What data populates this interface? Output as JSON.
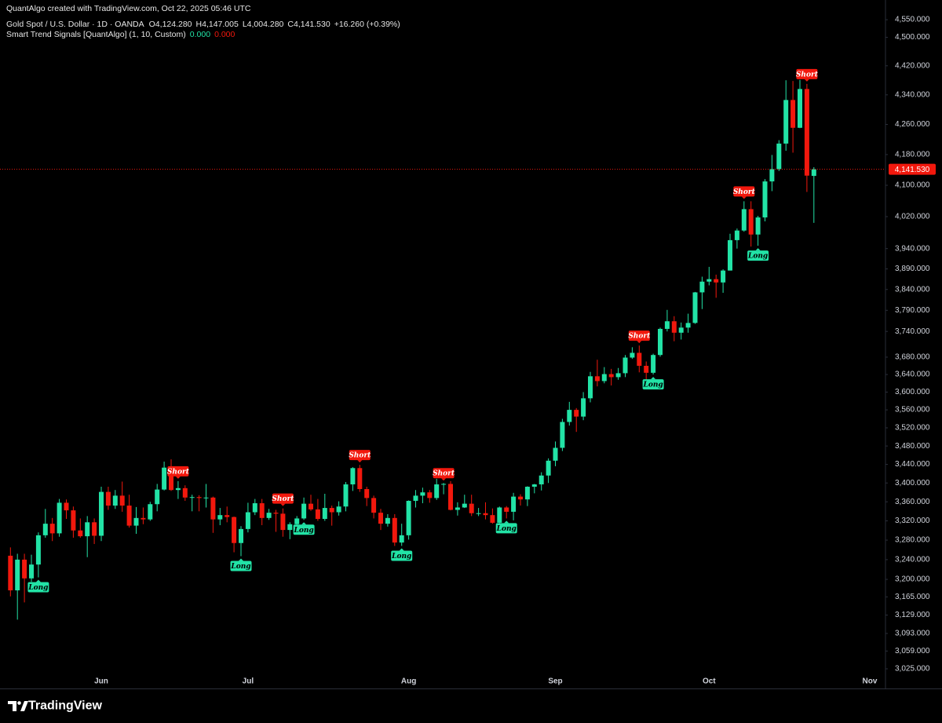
{
  "chart_data": {
    "type": "candlestick",
    "credit": "QuantAlgo created with TradingView.com, Oct 22, 2025 05:46 UTC",
    "symbol": "Gold Spot / U.S. Dollar · 1D · OANDA",
    "ohlc_legend": [
      "O4,124.280",
      "H4,147.005",
      "L4,004.280",
      "C4,141.530",
      "+16.260 (+0.39%)"
    ],
    "indicator": "Smart Trend Signals [QuantAlgo] (1, 10, Custom)",
    "indicator_values": [
      "0.000",
      "0.000"
    ],
    "indicator_colors": [
      "#22e3a6",
      "#f2180d"
    ],
    "brand": "TradingView",
    "log_scale": true,
    "up_color": "#22e3a6",
    "down_color": "#f2180d",
    "ylim": [
      3016,
      4575
    ],
    "yticks": [
      {
        "value": 4550,
        "label": "4,550.000"
      },
      {
        "value": 4500,
        "label": "4,500.000"
      },
      {
        "value": 4420,
        "label": "4,420.000"
      },
      {
        "value": 4340,
        "label": "4,340.000"
      },
      {
        "value": 4260,
        "label": "4,260.000"
      },
      {
        "value": 4180,
        "label": "4,180.000"
      },
      {
        "value": 4100,
        "label": "4,100.000"
      },
      {
        "value": 4020,
        "label": "4,020.000"
      },
      {
        "value": 3940,
        "label": "3,940.000"
      },
      {
        "value": 3890,
        "label": "3,890.000"
      },
      {
        "value": 3840,
        "label": "3,840.000"
      },
      {
        "value": 3790,
        "label": "3,790.000"
      },
      {
        "value": 3740,
        "label": "3,740.000"
      },
      {
        "value": 3680,
        "label": "3,680.000"
      },
      {
        "value": 3640,
        "label": "3,640.000"
      },
      {
        "value": 3600,
        "label": "3,600.000"
      },
      {
        "value": 3560,
        "label": "3,560.000"
      },
      {
        "value": 3520,
        "label": "3,520.000"
      },
      {
        "value": 3480,
        "label": "3,480.000"
      },
      {
        "value": 3440,
        "label": "3,440.000"
      },
      {
        "value": 3400,
        "label": "3,400.000"
      },
      {
        "value": 3360,
        "label": "3,360.000"
      },
      {
        "value": 3320,
        "label": "3,320.000"
      },
      {
        "value": 3280,
        "label": "3,280.000"
      },
      {
        "value": 3240,
        "label": "3,240.000"
      },
      {
        "value": 3200,
        "label": "3,200.000"
      },
      {
        "value": 3165,
        "label": "3,165.000"
      },
      {
        "value": 3129,
        "label": "3,129.000"
      },
      {
        "value": 3093,
        "label": "3,093.000"
      },
      {
        "value": 3059,
        "label": "3,059.000"
      },
      {
        "value": 3025,
        "label": "3,025.000"
      }
    ],
    "last_price": {
      "value": 4141.53,
      "label": "4,141.530"
    },
    "last_price_color": "#f2180d",
    "categories": [
      null,
      null,
      null,
      null,
      null,
      null,
      null,
      null,
      null,
      null,
      null,
      null,
      null,
      "Jun",
      null,
      null,
      null,
      null,
      null,
      null,
      null,
      null,
      null,
      null,
      null,
      null,
      null,
      null,
      null,
      null,
      null,
      null,
      null,
      null,
      "Jul",
      null,
      null,
      null,
      null,
      null,
      null,
      null,
      null,
      null,
      null,
      null,
      null,
      null,
      null,
      null,
      null,
      null,
      null,
      null,
      null,
      null,
      null,
      "Aug",
      null,
      null,
      null,
      null,
      null,
      null,
      null,
      null,
      null,
      null,
      null,
      null,
      null,
      null,
      null,
      null,
      null,
      null,
      null,
      null,
      "Sep",
      null,
      null,
      null,
      null,
      null,
      null,
      null,
      null,
      null,
      null,
      null,
      null,
      null,
      null,
      null,
      null,
      null,
      null,
      null,
      null,
      null,
      "Oct",
      null,
      null,
      null,
      null,
      null,
      null,
      null,
      null,
      null,
      null,
      null,
      null,
      null,
      null,
      null,
      null,
      null,
      null,
      null,
      null,
      null,
      null,
      "Nov"
    ],
    "open": [
      3248,
      3178,
      3240,
      3202,
      3230,
      3290,
      3314,
      3294,
      3358,
      3342,
      3300,
      3288,
      3317,
      3289,
      3381,
      3352,
      3373,
      3352,
      3310,
      3326,
      3323,
      3355,
      3386,
      3433,
      3385,
      3389,
      3369,
      3370,
      3368,
      3369,
      3323,
      3332,
      3328,
      3274,
      3303,
      3338,
      3357,
      3326,
      3337,
      3335,
      3301,
      3313,
      3325,
      3356,
      3344,
      3324,
      3347,
      3338,
      3350,
      3397,
      3432,
      3387,
      3368,
      3337,
      3314,
      3326,
      3275,
      3290,
      3362,
      3373,
      3380,
      3368,
      3397,
      3398,
      3343,
      3348,
      3356,
      3336,
      3336,
      3332,
      3316,
      3348,
      3339,
      3371,
      3365,
      3392,
      3397,
      3416,
      3448,
      3476,
      3533,
      3560,
      3545,
      3586,
      3636,
      3625,
      3641,
      3634,
      3643,
      3679,
      3690,
      3660,
      3644,
      3685,
      3746,
      3764,
      3737,
      3749,
      3760,
      3833,
      3859,
      3865,
      3857,
      3886,
      3961,
      3985,
      4039,
      3975,
      4018,
      4110,
      4142,
      4209,
      4326,
      4251,
      4356,
      4124.28,
      null,
      null,
      null,
      null,
      null,
      null,
      null,
      null
    ],
    "high": [
      3265,
      3252,
      3252,
      3250,
      3296,
      3345,
      3326,
      3366,
      3365,
      3350,
      3325,
      3330,
      3325,
      3392,
      3392,
      3385,
      3403,
      3375,
      3349,
      3348,
      3360,
      3398,
      3446,
      3451,
      3404,
      3395,
      3375,
      3374,
      3398,
      3371,
      3347,
      3350,
      3329,
      3309,
      3358,
      3366,
      3366,
      3345,
      3343,
      3346,
      3317,
      3330,
      3369,
      3375,
      3366,
      3377,
      3352,
      3361,
      3402,
      3434,
      3439,
      3392,
      3373,
      3345,
      3334,
      3334,
      3314,
      3363,
      3385,
      3390,
      3385,
      3409,
      3400,
      3404,
      3359,
      3375,
      3375,
      3347,
      3359,
      3346,
      3350,
      3351,
      3379,
      3376,
      3393,
      3398,
      3423,
      3453,
      3490,
      3540,
      3578,
      3564,
      3600,
      3646,
      3674,
      3657,
      3653,
      3655,
      3685,
      3703,
      3707,
      3670,
      3688,
      3749,
      3791,
      3776,
      3761,
      3782,
      3834,
      3871,
      3895,
      3876,
      3889,
      3977,
      3990,
      4059,
      4059,
      4022,
      4116,
      4179,
      4218,
      4380,
      4378,
      4381,
      4370,
      4147.005,
      null,
      null,
      null,
      null,
      null,
      null,
      null,
      null
    ],
    "low": [
      3166,
      3120,
      3154,
      3195,
      3204,
      3285,
      3278,
      3287,
      3324,
      3285,
      3285,
      3245,
      3272,
      3278,
      3343,
      3345,
      3339,
      3306,
      3293,
      3313,
      3320,
      3340,
      3384,
      3383,
      3366,
      3362,
      3340,
      3340,
      3348,
      3295,
      3311,
      3317,
      3255,
      3247,
      3296,
      3332,
      3311,
      3322,
      3297,
      3287,
      3282,
      3310,
      3322,
      3341,
      3320,
      3320,
      3310,
      3331,
      3340,
      3383,
      3381,
      3351,
      3325,
      3301,
      3308,
      3268,
      3268,
      3281,
      3348,
      3357,
      3358,
      3364,
      3376,
      3342,
      3331,
      3347,
      3330,
      3330,
      3323,
      3314,
      3311,
      3325,
      3321,
      3352,
      3351,
      3378,
      3384,
      3400,
      3436,
      3469,
      3525,
      3511,
      3537,
      3577,
      3613,
      3620,
      3615,
      3628,
      3634,
      3676,
      3645,
      3628,
      3640,
      3681,
      3740,
      3717,
      3721,
      3737,
      3758,
      3793,
      3850,
      3820,
      3832,
      3886,
      3940,
      3982,
      3945,
      3947,
      4008,
      4085,
      4137,
      4190,
      4185,
      4250,
      4083,
      4004.28,
      null,
      null,
      null,
      null,
      null,
      null,
      null,
      null
    ],
    "close": [
      3178,
      3240,
      3202,
      3230,
      3290,
      3314,
      3294,
      3358,
      3342,
      3300,
      3288,
      3317,
      3289,
      3381,
      3352,
      3373,
      3352,
      3310,
      3326,
      3323,
      3355,
      3386,
      3433,
      3385,
      3389,
      3369,
      3370,
      3368,
      3369,
      3323,
      3332,
      3328,
      3274,
      3303,
      3338,
      3357,
      3326,
      3337,
      3335,
      3301,
      3313,
      3325,
      3356,
      3344,
      3324,
      3347,
      3338,
      3350,
      3397,
      3432,
      3387,
      3368,
      3337,
      3314,
      3326,
      3275,
      3290,
      3362,
      3373,
      3380,
      3368,
      3397,
      3398,
      3343,
      3348,
      3356,
      3336,
      3336,
      3332,
      3316,
      3348,
      3339,
      3371,
      3365,
      3392,
      3397,
      3416,
      3448,
      3476,
      3533,
      3560,
      3545,
      3586,
      3636,
      3625,
      3641,
      3634,
      3643,
      3679,
      3690,
      3660,
      3644,
      3685,
      3746,
      3764,
      3737,
      3749,
      3760,
      3833,
      3859,
      3865,
      3857,
      3886,
      3961,
      3985,
      4039,
      3975,
      4018,
      4110,
      4142,
      4209,
      4326,
      4251,
      4356,
      4125,
      4141.53,
      null,
      null,
      null,
      null,
      null,
      null,
      null,
      null
    ],
    "signals": [
      null,
      null,
      null,
      null,
      "Long",
      null,
      null,
      null,
      null,
      null,
      null,
      null,
      null,
      null,
      null,
      null,
      null,
      null,
      null,
      null,
      null,
      null,
      null,
      null,
      "Short",
      null,
      null,
      null,
      null,
      null,
      null,
      null,
      null,
      "Long",
      null,
      null,
      null,
      null,
      null,
      "Short",
      null,
      null,
      "Long",
      null,
      null,
      null,
      null,
      null,
      null,
      null,
      "Short",
      null,
      null,
      null,
      null,
      null,
      "Long",
      null,
      null,
      null,
      null,
      null,
      "Short",
      null,
      null,
      null,
      null,
      null,
      null,
      null,
      null,
      "Long",
      null,
      null,
      null,
      null,
      null,
      null,
      null,
      null,
      null,
      null,
      null,
      null,
      null,
      null,
      null,
      null,
      null,
      null,
      "Short",
      null,
      "Long",
      null,
      null,
      null,
      null,
      null,
      null,
      null,
      null,
      null,
      null,
      null,
      null,
      "Short",
      null,
      "Long",
      null,
      null,
      null,
      null,
      null,
      null,
      "Short",
      null,
      null,
      null,
      null,
      null,
      null,
      null,
      null,
      null
    ],
    "signal_colors": {
      "Long": "#22e3a6",
      "Short": "#f2180d"
    }
  }
}
